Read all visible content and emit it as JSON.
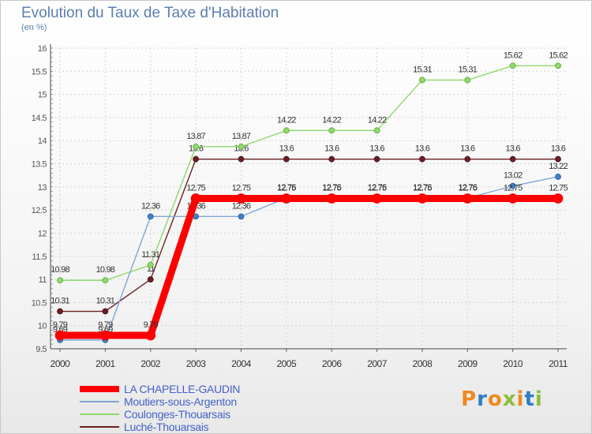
{
  "chart_data": {
    "type": "line",
    "title": "Evolution du Taux de Taxe d'Habitation",
    "unit_label": "(en %)",
    "x": [
      "2000",
      "2001",
      "2002",
      "2003",
      "2004",
      "2005",
      "2006",
      "2007",
      "2008",
      "2009",
      "2010",
      "2011"
    ],
    "ylim": [
      9.5,
      16
    ],
    "yticks": [
      "9.5",
      "10",
      "10.5",
      "11",
      "11.5",
      "12",
      "12.5",
      "13",
      "13.5",
      "14",
      "14.5",
      "15",
      "15.5",
      "16"
    ],
    "grid": true,
    "legend_position": "bottom-left",
    "series": [
      {
        "name": "Luché-Thouarsais",
        "color": "#6b1f23",
        "values": [
          10.31,
          10.31,
          11,
          13.6,
          13.6,
          13.6,
          13.6,
          13.6,
          13.6,
          13.6,
          13.6,
          13.6
        ],
        "labels": [
          "10.31",
          "10.31",
          "11",
          "13.6",
          "13.6",
          "13.6",
          "13.6",
          "13.6",
          "13.6",
          "13.6",
          "13.6",
          "13.6"
        ]
      },
      {
        "name": "Coulonges-Thouarsais",
        "color": "#8fd96a",
        "values": [
          10.98,
          10.98,
          11.31,
          13.87,
          13.87,
          14.22,
          14.22,
          14.22,
          15.31,
          15.31,
          15.62,
          15.62
        ],
        "labels": [
          "10.98",
          "10.98",
          "11.31",
          "13.87",
          "13.87",
          "14.22",
          "14.22",
          "14.22",
          "15.31",
          "15.31",
          "15.62",
          "15.62"
        ]
      },
      {
        "name": "Moutiers-sous-Argenton",
        "color": "#7fa6d6",
        "values": [
          9.69,
          9.69,
          12.36,
          12.36,
          12.36,
          12.76,
          12.76,
          12.76,
          12.76,
          12.76,
          13.02,
          13.22
        ],
        "labels": [
          "9.69",
          "9.69",
          "12.36",
          "12.36",
          "12.36",
          "12.76",
          "12.76",
          "12.76",
          "12.76",
          "12.76",
          "13.02",
          "13.22"
        ]
      },
      {
        "name": "LA CHAPELLE-GAUDIN",
        "color": "#ff0000",
        "values": [
          9.79,
          9.79,
          9.79,
          12.75,
          12.75,
          12.75,
          12.75,
          12.75,
          12.75,
          12.75,
          12.75,
          12.75
        ],
        "labels": [
          "9.79",
          "9.79",
          "9.79",
          "12.75",
          "12.75",
          "12.75",
          "12.75",
          "12.75",
          "12.75",
          "12.75",
          "12.75",
          "12.75"
        ]
      }
    ],
    "legend_order": [
      "LA CHAPELLE-GAUDIN",
      "Moutiers-sous-Argenton",
      "Coulonges-Thouarsais",
      "Luché-Thouarsais"
    ]
  },
  "logo": {
    "text": "Proxiti",
    "colors": [
      "#ee8a1e",
      "#2e7dc6",
      "#ee8a1e",
      "#8bbf3a",
      "#ee8a1e",
      "#2e7dc6",
      "#8bbf3a"
    ]
  }
}
